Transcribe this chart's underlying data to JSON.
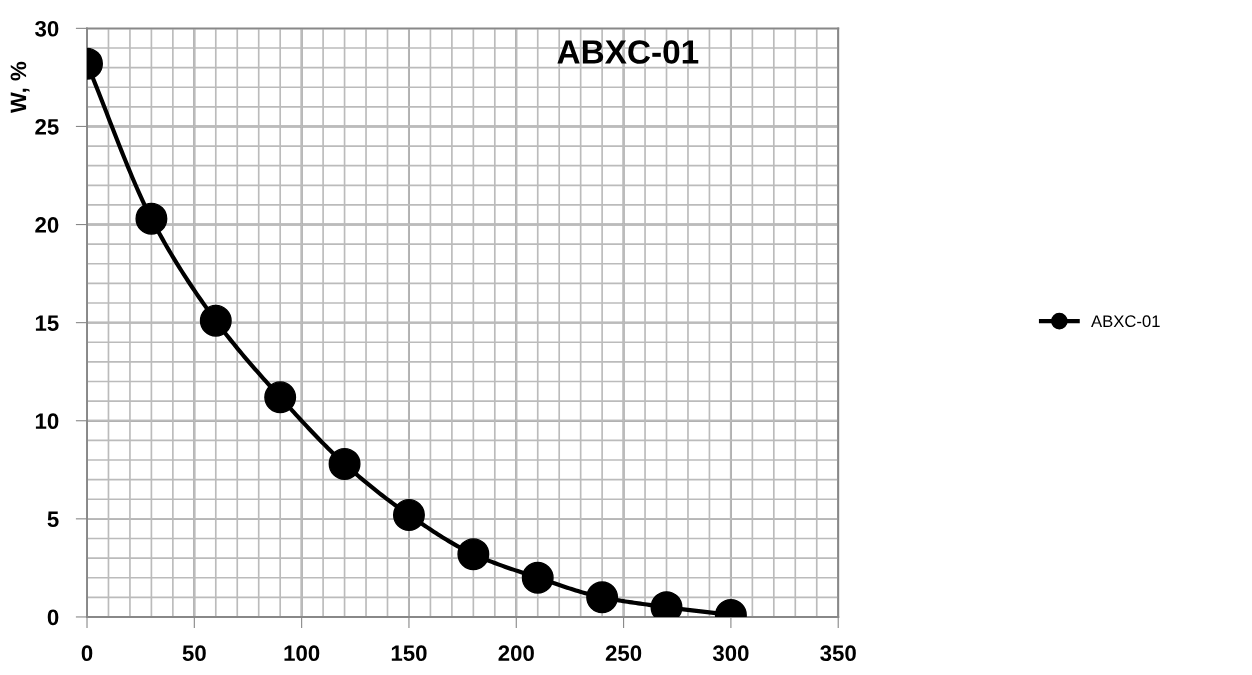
{
  "chart_data": {
    "type": "line",
    "title": "ABXC-01",
    "ylabel": "W, %",
    "x": [
      0,
      30,
      60,
      90,
      120,
      150,
      180,
      210,
      240,
      270,
      300
    ],
    "series": [
      {
        "name": "ABXC-01",
        "color": "#000000",
        "values": [
          28.2,
          20.3,
          15.1,
          11.2,
          7.8,
          5.2,
          3.2,
          2.0,
          1.0,
          0.5,
          0.1
        ]
      }
    ],
    "xlim": [
      0,
      350
    ],
    "xticks": [
      0,
      50,
      100,
      150,
      200,
      250,
      300,
      350
    ],
    "ylim": [
      0,
      30
    ],
    "yticks": [
      0,
      5,
      10,
      15,
      20,
      25,
      30
    ],
    "grid": true,
    "legend": "right",
    "marker": "circle",
    "line_style": "solid"
  }
}
